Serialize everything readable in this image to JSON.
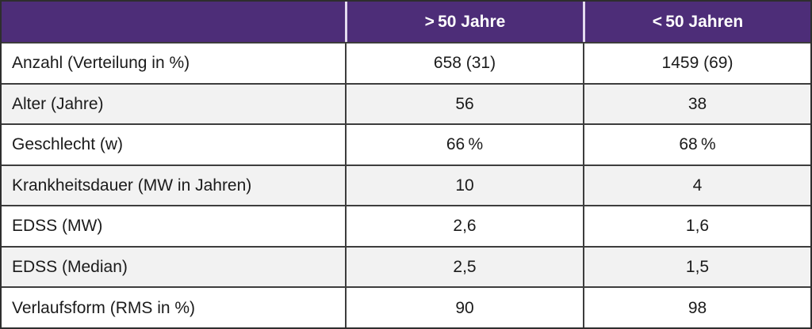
{
  "colors": {
    "header_bg": "#4d2d78",
    "header_text": "#ffffff",
    "header_divider": "#e3dbef",
    "border_outer": "#2e2e2e",
    "border_inner": "#3d3d3d",
    "row_alt_bg": "#f2f2f2",
    "row_bg": "#ffffff",
    "text": "#1b1b1b"
  },
  "chart_data": {
    "type": "table",
    "header": [
      "",
      "> 50 Jahre",
      "< 50 Jahren"
    ],
    "rows": [
      [
        "Anzahl (Verteilung in %)",
        "658 (31)",
        "1459 (69)"
      ],
      [
        "Alter (Jahre)",
        "56",
        "38"
      ],
      [
        "Geschlecht (w)",
        "66 %",
        "68 %"
      ],
      [
        "Krankheitsdauer (MW in Jahren)",
        "10",
        "4"
      ],
      [
        "EDSS (MW)",
        "2,6",
        "1,6"
      ],
      [
        "EDSS (Median)",
        "2,5",
        "1,5"
      ],
      [
        "Verlaufsform (RMS in %)",
        "90",
        "98"
      ]
    ],
    "layout": {
      "grid": true,
      "header_style": "purple band, white bold, centered",
      "alt_row_shading": [
        1,
        3,
        5
      ]
    }
  }
}
